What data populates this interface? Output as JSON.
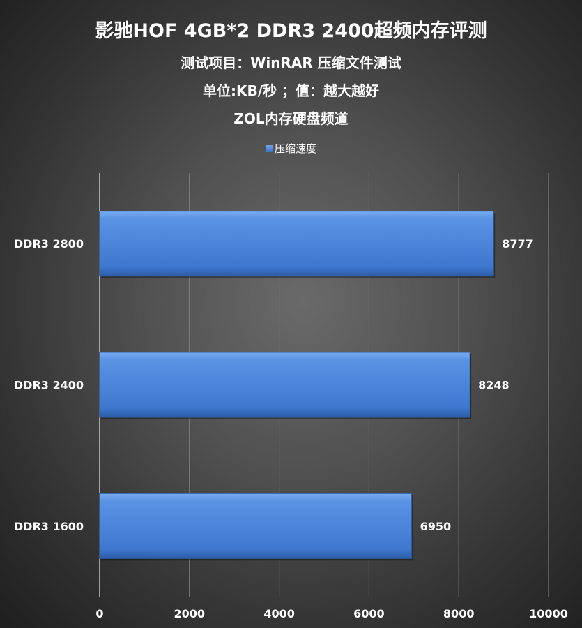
{
  "chart_data": {
    "type": "bar",
    "orientation": "horizontal",
    "title": "影驰HOF 4GB*2 DDR3 2400超频内存评测",
    "subtitles": [
      "测试项目：WinRAR  压缩文件测试",
      "单位:KB/秒 ；值：越大越好",
      "ZOL内存硬盘频道"
    ],
    "categories": [
      "DDR3 2800",
      "DDR3 2400",
      "DDR3 1600"
    ],
    "series": [
      {
        "name": "压缩速度",
        "values": [
          8777,
          8248,
          6950
        ],
        "color": "#4a86dc"
      }
    ],
    "xlim": [
      0,
      10000
    ],
    "xticks": [
      "0",
      "2000",
      "4000",
      "6000",
      "8000",
      "10000"
    ],
    "grid": true,
    "legend_position": "top"
  }
}
